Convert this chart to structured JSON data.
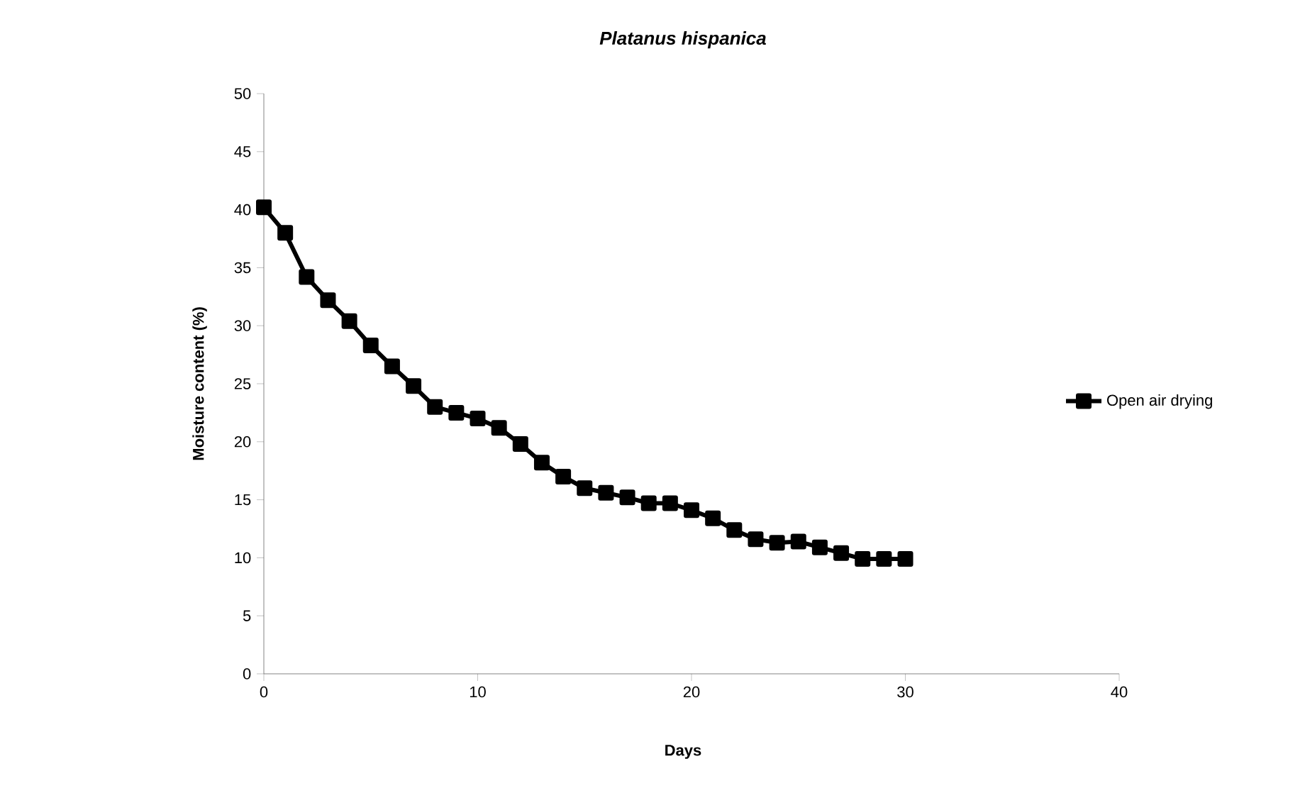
{
  "chart_data": {
    "type": "line",
    "title": "Platanus hispanica",
    "xlabel": "Days",
    "ylabel": "Moisture content (%)",
    "x": [
      0,
      1,
      2,
      3,
      4,
      5,
      6,
      7,
      8,
      9,
      10,
      11,
      12,
      13,
      14,
      15,
      16,
      17,
      18,
      19,
      20,
      21,
      22,
      23,
      24,
      25,
      26,
      27,
      28,
      29,
      30
    ],
    "series": [
      {
        "name": "Open air drying",
        "color": "#000000",
        "values": [
          40.2,
          38,
          34.2,
          32.2,
          30.4,
          28.3,
          26.5,
          24.8,
          23,
          22.5,
          22,
          21.2,
          19.8,
          18.2,
          17,
          16,
          15.6,
          15.2,
          14.7,
          14.7,
          14.1,
          13.4,
          12.4,
          11.6,
          11.3,
          11.4,
          10.9,
          10.4,
          9.9,
          9.9,
          9.9
        ]
      }
    ],
    "xlim": [
      0,
      40
    ],
    "xticks": [
      0,
      10,
      20,
      30,
      40
    ],
    "ylim": [
      0,
      50
    ],
    "yticks": [
      0,
      5,
      10,
      15,
      20,
      25,
      30,
      35,
      40,
      45,
      50
    ],
    "grid": false,
    "legend": "right",
    "marker": "square",
    "line_style": "solid"
  }
}
